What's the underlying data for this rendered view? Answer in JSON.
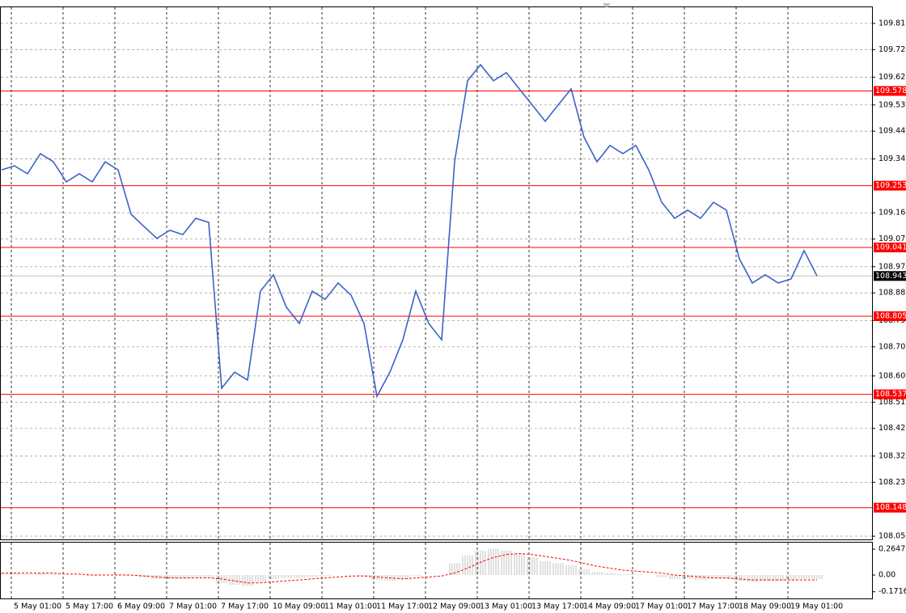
{
  "chart_data": [
    {
      "type": "line",
      "x": [
        -3,
        1,
        5,
        9,
        13,
        17,
        21,
        25,
        29,
        33,
        37,
        41,
        45,
        49,
        53,
        57,
        61,
        65,
        69,
        73,
        77,
        81,
        85,
        89,
        93,
        97,
        101,
        105,
        109,
        113,
        117,
        121,
        125,
        129,
        133,
        137,
        141,
        145,
        149,
        153,
        157,
        161,
        165,
        169,
        173,
        177,
        181,
        185,
        189,
        193,
        197,
        201,
        205,
        209,
        213,
        217,
        221,
        225,
        229,
        233,
        237,
        241,
        245,
        249
      ],
      "series": [
        {
          "color": "#3a62c8",
          "values": [
            109.307,
            109.321,
            109.294,
            109.363,
            109.335,
            109.266,
            109.294,
            109.266,
            109.335,
            109.307,
            109.155,
            109.113,
            109.072,
            109.1,
            109.085,
            109.141,
            109.127,
            108.558,
            108.613,
            108.586,
            108.891,
            108.947,
            108.836,
            108.78,
            108.891,
            108.863,
            108.919,
            108.877,
            108.78,
            108.53,
            108.613,
            108.724,
            108.891,
            108.78,
            108.724,
            109.335,
            109.613,
            109.668,
            109.613,
            109.641,
            109.585,
            109.53,
            109.474,
            109.53,
            109.585,
            109.419,
            109.335,
            109.391,
            109.363,
            109.391,
            109.307,
            109.196,
            109.141,
            109.169,
            109.141,
            109.196,
            109.169,
            109.002,
            108.919,
            108.947,
            108.919,
            108.933,
            109.03,
            108.943
          ]
        }
      ],
      "xlim": [
        -3.5,
        266
      ],
      "xticks": [
        {
          "value": 0,
          "label": "5 May 01:00"
        },
        {
          "value": 16,
          "label": "5 May 17:00"
        },
        {
          "value": 32,
          "label": "6 May 09:00"
        },
        {
          "value": 48,
          "label": "7 May 01:00"
        },
        {
          "value": 64,
          "label": "7 May 17:00"
        },
        {
          "value": 80,
          "label": "10 May 09:00"
        },
        {
          "value": 96,
          "label": "11 May 01:00"
        },
        {
          "value": 112,
          "label": "11 May 17:00"
        },
        {
          "value": 128,
          "label": "12 May 09:00"
        },
        {
          "value": 144,
          "label": "13 May 01:00"
        },
        {
          "value": 160,
          "label": "13 May 17:00"
        },
        {
          "value": 176,
          "label": "14 May 09:00"
        },
        {
          "value": 192,
          "label": "17 May 01:00"
        },
        {
          "value": 208,
          "label": "17 May 17:00"
        },
        {
          "value": 224,
          "label": "18 May 09:00"
        },
        {
          "value": 240,
          "label": "19 May 01:00"
        }
      ],
      "ylim": [
        108.039,
        109.868
      ],
      "yticks": [
        {
          "value": 109.81,
          "label": "109.810"
        },
        {
          "value": 109.72,
          "label": "109.720"
        },
        109.625,
        {
          "value": 109.53,
          "label": "109.530"
        },
        {
          "value": 109.44,
          "label": "109.440"
        },
        109.345,
        {
          "value": 109.16,
          "label": "109.160"
        },
        {
          "value": 109.07,
          "label": "109.070"
        },
        108.975,
        108.885,
        {
          "value": 108.79,
          "label": "108.790"
        },
        {
          "value": 108.7,
          "label": "108.700"
        },
        {
          "value": 108.6,
          "label": "108.600"
        },
        {
          "value": 108.51,
          "label": "108.510"
        },
        {
          "value": 108.42,
          "label": "108.420"
        },
        108.325,
        108.235,
        {
          "value": 108.05,
          "label": "108.050"
        }
      ],
      "grid": true,
      "levels": [
        109.578,
        109.253,
        109.041,
        108.805,
        108.537,
        108.148
      ],
      "level_color": "#ff0000",
      "last_price": 108.943
    },
    {
      "type": "bar",
      "color": "#c0c0c0",
      "values": [
        0.02,
        0.02,
        0.01,
        0.02,
        0.01,
        0.0,
        0.0,
        -0.01,
        0.0,
        0.01,
        -0.01,
        -0.02,
        -0.04,
        -0.04,
        -0.04,
        -0.03,
        -0.03,
        -0.08,
        -0.1,
        -0.11,
        -0.07,
        -0.04,
        -0.03,
        -0.03,
        -0.02,
        -0.01,
        0.0,
        0.0,
        -0.01,
        -0.05,
        -0.06,
        -0.04,
        -0.01,
        0.0,
        0.0,
        0.12,
        0.2,
        0.25,
        0.27,
        0.25,
        0.22,
        0.18,
        0.14,
        0.12,
        0.1,
        0.06,
        0.03,
        0.02,
        0.01,
        0.01,
        0.0,
        -0.02,
        -0.04,
        -0.04,
        -0.05,
        -0.04,
        -0.04,
        -0.06,
        -0.07,
        -0.06,
        -0.06,
        -0.05,
        -0.04,
        -0.04
      ],
      "signal": {
        "color": "#ff0000",
        "dashed": true,
        "values": [
          0.02,
          0.02,
          0.02,
          0.02,
          0.02,
          0.01,
          0.01,
          0.0,
          0.0,
          0.0,
          0.0,
          -0.01,
          -0.02,
          -0.03,
          -0.03,
          -0.03,
          -0.03,
          -0.04,
          -0.06,
          -0.08,
          -0.08,
          -0.07,
          -0.06,
          -0.05,
          -0.04,
          -0.03,
          -0.02,
          -0.01,
          -0.01,
          -0.02,
          -0.03,
          -0.04,
          -0.03,
          -0.02,
          -0.01,
          0.02,
          0.07,
          0.13,
          0.18,
          0.21,
          0.22,
          0.21,
          0.19,
          0.17,
          0.15,
          0.12,
          0.09,
          0.07,
          0.05,
          0.04,
          0.03,
          0.02,
          0.0,
          -0.01,
          -0.02,
          -0.03,
          -0.03,
          -0.04,
          -0.05,
          -0.05,
          -0.05,
          -0.05,
          -0.05,
          -0.05
        ]
      },
      "ylim": [
        -0.24,
        0.34
      ],
      "yticks": [
        0.2647,
        {
          "value": 0,
          "label": "0.00"
        },
        -0.1716
      ]
    }
  ]
}
